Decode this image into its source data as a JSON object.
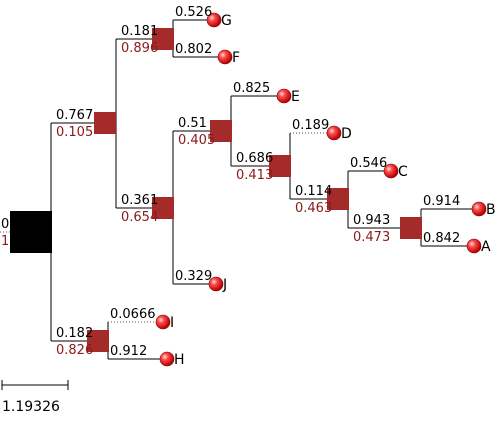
{
  "colors": {
    "branch_text": "#000000",
    "support_text": "#8b1a1a",
    "internal_node": "#a52a2a",
    "root_node": "#000000",
    "leaf_sphere": "#ff2b2b"
  },
  "root": {
    "branch": "0",
    "support": "1"
  },
  "internal_nodes": [
    {
      "id": "n1",
      "branch": "0.767",
      "support": "0.105"
    },
    {
      "id": "n2",
      "branch": "0.181",
      "support": "0.896"
    },
    {
      "id": "n3",
      "branch": "0.361",
      "support": "0.654"
    },
    {
      "id": "n4",
      "branch": "0.51",
      "support": "0.405"
    },
    {
      "id": "n5",
      "branch": "0.686",
      "support": "0.413"
    },
    {
      "id": "n6",
      "branch": "0.114",
      "support": "0.463"
    },
    {
      "id": "n7",
      "branch": "0.943",
      "support": "0.473"
    },
    {
      "id": "n8",
      "branch": "0.182",
      "support": "0.826"
    }
  ],
  "leaves": [
    {
      "id": "G",
      "label": "G",
      "branch": "0.526"
    },
    {
      "id": "F",
      "label": "F",
      "branch": "0.802"
    },
    {
      "id": "E",
      "label": "E",
      "branch": "0.825"
    },
    {
      "id": "D",
      "label": "D",
      "branch": "0.189"
    },
    {
      "id": "C",
      "label": "C",
      "branch": "0.546"
    },
    {
      "id": "B",
      "label": "B",
      "branch": "0.914"
    },
    {
      "id": "A",
      "label": "A",
      "branch": "0.842"
    },
    {
      "id": "J",
      "label": "J",
      "branch": "0.329"
    },
    {
      "id": "I",
      "label": "I",
      "branch": "0.0666"
    },
    {
      "id": "H",
      "label": "H",
      "branch": "0.912"
    }
  ],
  "scale_bar": {
    "label": "1.19326"
  }
}
